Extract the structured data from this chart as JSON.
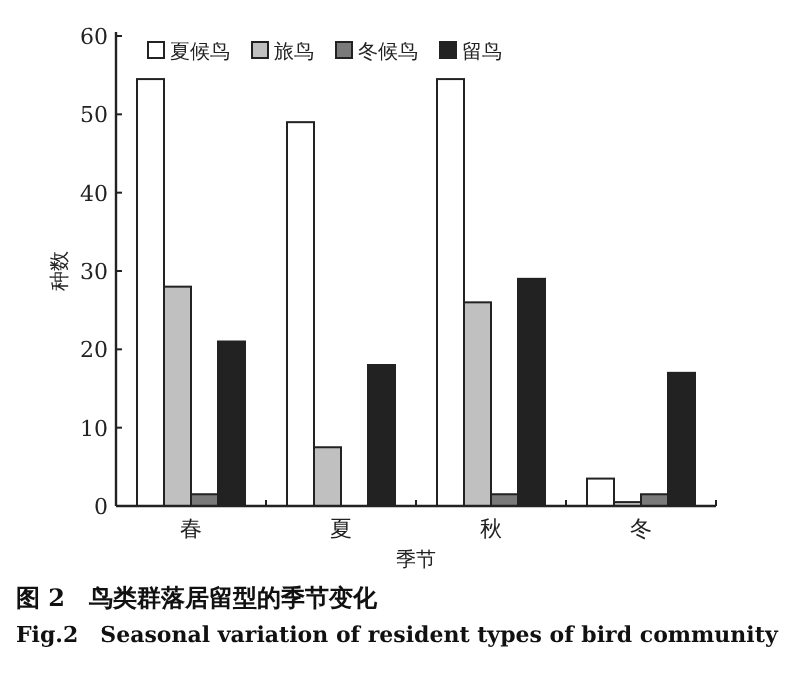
{
  "chart_data": {
    "type": "bar",
    "title": "图 2　鸟类群落居留型的季节变化",
    "subtitle": "Fig.2　Seasonal variation of resident types of bird community",
    "xlabel": "季节",
    "ylabel": "种数",
    "categories": [
      "春",
      "夏",
      "秋",
      "冬"
    ],
    "series": [
      {
        "name": "夏候鸟",
        "color": "#ffffff",
        "values": [
          54.5,
          49,
          54.5,
          3.5
        ]
      },
      {
        "name": "旅鸟",
        "color": "#c0c0c0",
        "values": [
          28,
          7.5,
          26,
          0.5
        ]
      },
      {
        "name": "冬候鸟",
        "color": "#7a7a7a",
        "values": [
          1.5,
          null,
          1.5,
          1.5
        ]
      },
      {
        "name": "留鸟",
        "color": "#222222",
        "values": [
          21,
          18,
          29,
          17
        ]
      }
    ],
    "ylim": [
      0,
      60
    ],
    "yticks": [
      0,
      10,
      20,
      30,
      40,
      50,
      60
    ],
    "legend": "top"
  }
}
